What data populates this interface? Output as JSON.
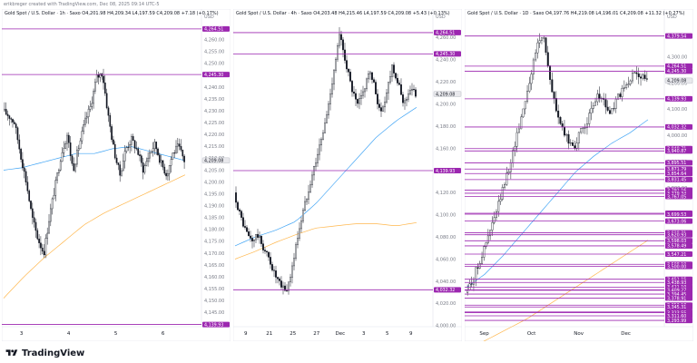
{
  "header": {
    "credit": "erikbreger created with TradingView.com, Dec 08, 2025 09:14 UTC-5"
  },
  "footer": {
    "brand": "TradingView",
    "icon": "tradingview-logo-icon"
  },
  "colors": {
    "candle": "#131722",
    "level": "#9c27b0",
    "ma_fast": "#42a5f5",
    "ma_slow": "#ffb74d",
    "axis_text": "#131722",
    "tick_text": "#787b86"
  },
  "chart_data": [
    {
      "type": "candlestick",
      "title": "Gold Spot / U.S. Dollar · 1h · Saxo  O4,201.98  H4,209.34  L4,197.59  C4,209.08  +7.18 (+0.17%)",
      "currency": "USD",
      "ylim": [
        4139,
        4266
      ],
      "x_ticks": [
        "3",
        "4",
        "5",
        "6"
      ],
      "y_ticks": [
        4145,
        4150,
        4155,
        4160,
        4165,
        4170,
        4175,
        4180,
        4185,
        4190,
        4195,
        4200,
        4205,
        4210,
        4215,
        4220,
        4225,
        4230,
        4235,
        4240,
        4245,
        4250,
        4255,
        4260
      ],
      "y_tick_labels": [
        "4,145.00",
        "4,150.00",
        "4,155.00",
        "4,160.00",
        "4,165.00",
        "4,170.00",
        "4,175.00",
        "4,180.00",
        "4,185.00",
        "4,190.00",
        "4,195.00",
        "4,200.00",
        "4,205.00",
        "4,210.00",
        "4,215.00",
        "4,220.00",
        "4,225.00",
        "4,230.00",
        "4,235.00",
        "4,240.00",
        "4,245.00",
        "4,250.00",
        "4,255.00",
        "4,260.00"
      ],
      "price_levels": [
        {
          "value": 4264.51,
          "label": "4,264.51"
        },
        {
          "value": 4245.3,
          "label": "4,245.30"
        },
        {
          "value": 4139.93,
          "label": "4,139.93"
        }
      ],
      "last_price": {
        "value": 4209.08,
        "label": "4,209.08"
      },
      "price_path": [
        4230,
        4228,
        4225,
        4212,
        4200,
        4185,
        4176,
        4170,
        4186,
        4199,
        4212,
        4220,
        4205,
        4215,
        4225,
        4232,
        4244,
        4246,
        4228,
        4213,
        4203,
        4214,
        4218,
        4213,
        4205,
        4212,
        4216,
        4208,
        4203,
        4212,
        4215,
        4209
      ],
      "candle_count": 110,
      "ma_fast": [
        4205,
        4206,
        4208,
        4210,
        4212,
        4212,
        4214,
        4215,
        4213,
        4211,
        4209
      ],
      "ma_slow": [
        4151,
        4160,
        4168,
        4175,
        4182,
        4187,
        4191,
        4195,
        4199,
        4203
      ]
    },
    {
      "type": "candlestick",
      "title": "Gold Spot / U.S. Dollar · 4h · Saxo  O4,203.48  H4,215.46  L4,197.59  C4,209.08  +5.43 (+0.13%)",
      "currency": "USD",
      "ylim": [
        3999,
        4271
      ],
      "x_ticks": [
        "9",
        "21",
        "25",
        "27",
        "Dec",
        "3",
        "5",
        "9"
      ],
      "y_ticks": [
        4000,
        4020,
        4040,
        4060,
        4080,
        4100,
        4120,
        4140,
        4160,
        4180,
        4200,
        4220,
        4240,
        4260
      ],
      "y_tick_labels": [
        "4,000.00",
        "4,020.00",
        "4,040.00",
        "4,060.00",
        "4,080.00",
        "4,100.00",
        "4,120.00",
        "4,140.00",
        "4,160.00",
        "4,180.00",
        "4,200.00",
        "4,220.00",
        "4,240.00",
        "4,260.00"
      ],
      "price_levels": [
        {
          "value": 4264.51,
          "label": "4,264.51"
        },
        {
          "value": 4245.3,
          "label": "4,245.30"
        },
        {
          "value": 4139.93,
          "label": "4,139.93"
        },
        {
          "value": 4032.32,
          "label": "4,032.32"
        }
      ],
      "last_price": {
        "value": 4209.08,
        "label": "4,209.08"
      },
      "price_path": [
        4120,
        4100,
        4085,
        4076,
        4082,
        4070,
        4060,
        4045,
        4035,
        4032,
        4055,
        4085,
        4108,
        4130,
        4150,
        4170,
        4195,
        4230,
        4262,
        4240,
        4215,
        4198,
        4210,
        4230,
        4215,
        4190,
        4210,
        4236,
        4218,
        4200,
        4214,
        4209
      ],
      "candle_count": 100,
      "ma_fast": [
        4072,
        4080,
        4086,
        4094,
        4110,
        4130,
        4150,
        4170,
        4185,
        4197
      ],
      "ma_slow": [
        4060,
        4067,
        4075,
        4082,
        4088,
        4090,
        4092,
        4092,
        4090,
        4093
      ]
    },
    {
      "type": "candlestick",
      "title": "Gold Spot / U.S. Dollar · 1D · Saxo  O4,197.76  H4,219.08  L4,196.01  C4,209.08  +11.32 (+0.27%)",
      "currency": "USD",
      "ylim": [
        3270,
        4420
      ],
      "x_ticks": [
        "Sep",
        "Oct",
        "Nov",
        "Dec"
      ],
      "y_ticks": [
        3400,
        3500,
        3600,
        3700,
        3800,
        3900,
        4000,
        4100,
        4200,
        4300
      ],
      "y_tick_labels": [
        "3,400.00",
        "3,500.00",
        "3,600.00",
        "3,700.00",
        "3,800.00",
        "3,900.00",
        "4,000.00",
        "4,100.00",
        "4,200.00",
        "4,300.00"
      ],
      "price_levels": [
        {
          "value": 4379.54,
          "label": "4,379.54"
        },
        {
          "value": 4264.51,
          "label": "4,264.51"
        },
        {
          "value": 4245.3,
          "label": "4,245.30"
        },
        {
          "value": 4139.93,
          "label": "4,139.93"
        },
        {
          "value": 4032.32,
          "label": "4,032.32"
        },
        {
          "value": 3949.71,
          "label": "3,949.71"
        },
        {
          "value": 3940.87,
          "label": "3,940.87"
        },
        {
          "value": 3895.51,
          "label": "3,895.51"
        },
        {
          "value": 3871.79,
          "label": "3,871.79"
        },
        {
          "value": 3854.64,
          "label": "3,854.64"
        },
        {
          "value": 3831.45,
          "label": "3,831.45"
        },
        {
          "value": 3791.16,
          "label": "3,791.16"
        },
        {
          "value": 3779.34,
          "label": "3,779.34"
        },
        {
          "value": 3767.05,
          "label": "3,767.05"
        },
        {
          "value": 3703.0,
          "label": "3,703.00"
        },
        {
          "value": 3699.53,
          "label": "3,699.53"
        },
        {
          "value": 3673.06,
          "label": "3,673.06"
        },
        {
          "value": 3628.31,
          "label": "3,628.31"
        },
        {
          "value": 3620.93,
          "label": "3,620.93"
        },
        {
          "value": 3598.03,
          "label": "3,598.03"
        },
        {
          "value": 3578.49,
          "label": "3,578.49"
        },
        {
          "value": 3547.21,
          "label": "3,547.21"
        },
        {
          "value": 3508.19,
          "label": "3,508.19"
        },
        {
          "value": 3500.0,
          "label": "3,500.00"
        },
        {
          "value": 3451.15,
          "label": "3,451.15"
        },
        {
          "value": 3438.93,
          "label": "3,438.93"
        },
        {
          "value": 3421.1,
          "label": "3,421.10"
        },
        {
          "value": 3410.5,
          "label": "3,410.50"
        },
        {
          "value": 3409.27,
          "label": "3,409.27"
        },
        {
          "value": 3394.45,
          "label": "3,394.45"
        },
        {
          "value": 3378.91,
          "label": "3,378.91"
        },
        {
          "value": 3352.18,
          "label": "3,352.18"
        },
        {
          "value": 3345.31,
          "label": "3,345.31"
        },
        {
          "value": 3326.38,
          "label": "3,326.38"
        },
        {
          "value": 3323.55,
          "label": "3,323.55"
        },
        {
          "value": 3311.6,
          "label": "3,311.60"
        },
        {
          "value": 3293.99,
          "label": "3,293.99"
        }
      ],
      "last_price": {
        "value": 4209.08,
        "label": "4,209.08"
      },
      "price_path": [
        3400,
        3440,
        3500,
        3560,
        3630,
        3700,
        3780,
        3860,
        3950,
        4050,
        4150,
        4250,
        4360,
        4379,
        4200,
        4100,
        4020,
        3980,
        3960,
        4010,
        4050,
        4100,
        4160,
        4120,
        4080,
        4140,
        4170,
        4200,
        4245,
        4230,
        4209
      ],
      "candle_count": 88,
      "ma_fast": [
        3420,
        3470,
        3540,
        3620,
        3700,
        3780,
        3860,
        3920,
        3970,
        4010,
        4060
      ],
      "ma_slow": [
        3180,
        3220,
        3260,
        3300,
        3350,
        3400,
        3450,
        3500,
        3550,
        3600
      ]
    }
  ]
}
